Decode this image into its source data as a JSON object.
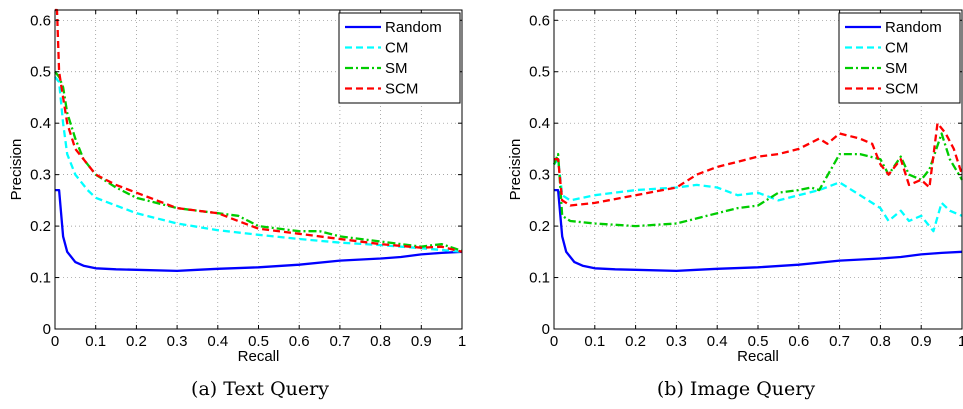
{
  "chart_data": [
    {
      "type": "line",
      "title": "",
      "caption": "(a) Text Query",
      "xlabel": "Recall",
      "ylabel": "Precision",
      "xlim": [
        0,
        1
      ],
      "ylim": [
        0,
        0.62
      ],
      "xticks": [
        "0",
        "0.1",
        "0.2",
        "0.3",
        "0.4",
        "0.5",
        "0.6",
        "0.7",
        "0.8",
        "0.9",
        "1"
      ],
      "yticks": [
        "0",
        "0.1",
        "0.2",
        "0.3",
        "0.4",
        "0.5",
        "0.6"
      ],
      "grid": true,
      "legend_position": "top-right",
      "series": [
        {
          "name": "Random",
          "color": "#0000ff",
          "dash": "solid",
          "x": [
            0,
            0.01,
            0.02,
            0.03,
            0.05,
            0.07,
            0.1,
            0.15,
            0.2,
            0.3,
            0.35,
            0.4,
            0.5,
            0.6,
            0.7,
            0.8,
            0.85,
            0.9,
            0.95,
            1.0
          ],
          "y": [
            0.27,
            0.27,
            0.18,
            0.15,
            0.13,
            0.123,
            0.118,
            0.116,
            0.115,
            0.113,
            0.115,
            0.117,
            0.12,
            0.125,
            0.133,
            0.137,
            0.14,
            0.145,
            0.148,
            0.15
          ]
        },
        {
          "name": "CM",
          "color": "#00ffff",
          "dash": "dashed",
          "x": [
            0,
            0.01,
            0.02,
            0.03,
            0.05,
            0.08,
            0.1,
            0.15,
            0.2,
            0.3,
            0.4,
            0.5,
            0.6,
            0.7,
            0.8,
            0.9,
            1.0
          ],
          "y": [
            0.49,
            0.48,
            0.4,
            0.34,
            0.3,
            0.27,
            0.255,
            0.24,
            0.225,
            0.205,
            0.192,
            0.183,
            0.175,
            0.168,
            0.163,
            0.157,
            0.15
          ]
        },
        {
          "name": "SM",
          "color": "#00cc00",
          "dash": "dashdot",
          "x": [
            0,
            0.01,
            0.02,
            0.03,
            0.05,
            0.07,
            0.1,
            0.15,
            0.2,
            0.3,
            0.35,
            0.4,
            0.45,
            0.5,
            0.6,
            0.65,
            0.7,
            0.8,
            0.9,
            0.95,
            1.0
          ],
          "y": [
            0.5,
            0.49,
            0.47,
            0.42,
            0.37,
            0.33,
            0.3,
            0.275,
            0.255,
            0.235,
            0.23,
            0.225,
            0.22,
            0.2,
            0.19,
            0.19,
            0.18,
            0.17,
            0.16,
            0.165,
            0.152
          ]
        },
        {
          "name": "SCM",
          "color": "#ff0000",
          "dash": "dashed",
          "x": [
            0,
            0.005,
            0.01,
            0.02,
            0.03,
            0.05,
            0.07,
            0.1,
            0.15,
            0.2,
            0.25,
            0.3,
            0.35,
            0.4,
            0.45,
            0.5,
            0.6,
            0.7,
            0.8,
            0.9,
            0.95,
            1.0
          ],
          "y": [
            0.62,
            0.62,
            0.5,
            0.45,
            0.4,
            0.35,
            0.33,
            0.3,
            0.28,
            0.265,
            0.25,
            0.235,
            0.23,
            0.225,
            0.21,
            0.195,
            0.185,
            0.175,
            0.165,
            0.158,
            0.16,
            0.15
          ]
        }
      ]
    },
    {
      "type": "line",
      "title": "",
      "caption": "(b) Image Query",
      "xlabel": "Recall",
      "ylabel": "Precision",
      "xlim": [
        0,
        1
      ],
      "ylim": [
        0,
        0.62
      ],
      "xticks": [
        "0",
        "0.1",
        "0.2",
        "0.3",
        "0.4",
        "0.5",
        "0.6",
        "0.7",
        "0.8",
        "0.9",
        "1"
      ],
      "yticks": [
        "0",
        "0.1",
        "0.2",
        "0.3",
        "0.4",
        "0.5",
        "0.6"
      ],
      "grid": true,
      "legend_position": "top-right",
      "series": [
        {
          "name": "Random",
          "color": "#0000ff",
          "dash": "solid",
          "x": [
            0,
            0.01,
            0.02,
            0.03,
            0.05,
            0.07,
            0.1,
            0.15,
            0.2,
            0.3,
            0.35,
            0.4,
            0.5,
            0.6,
            0.7,
            0.8,
            0.85,
            0.9,
            0.95,
            1.0
          ],
          "y": [
            0.27,
            0.27,
            0.18,
            0.15,
            0.13,
            0.123,
            0.118,
            0.116,
            0.115,
            0.113,
            0.115,
            0.117,
            0.12,
            0.125,
            0.133,
            0.137,
            0.14,
            0.145,
            0.148,
            0.15
          ]
        },
        {
          "name": "CM",
          "color": "#00ffff",
          "dash": "dashed",
          "x": [
            0,
            0.01,
            0.02,
            0.04,
            0.1,
            0.2,
            0.3,
            0.35,
            0.4,
            0.45,
            0.5,
            0.55,
            0.6,
            0.65,
            0.7,
            0.75,
            0.8,
            0.82,
            0.85,
            0.87,
            0.9,
            0.93,
            0.95,
            0.97,
            1.0
          ],
          "y": [
            0.32,
            0.33,
            0.26,
            0.25,
            0.26,
            0.27,
            0.275,
            0.28,
            0.275,
            0.26,
            0.265,
            0.25,
            0.26,
            0.27,
            0.285,
            0.26,
            0.235,
            0.21,
            0.23,
            0.21,
            0.22,
            0.19,
            0.245,
            0.23,
            0.22
          ]
        },
        {
          "name": "SM",
          "color": "#00cc00",
          "dash": "dashdot",
          "x": [
            0,
            0.01,
            0.02,
            0.04,
            0.1,
            0.2,
            0.3,
            0.35,
            0.4,
            0.45,
            0.5,
            0.55,
            0.6,
            0.63,
            0.65,
            0.7,
            0.75,
            0.8,
            0.82,
            0.85,
            0.87,
            0.9,
            0.92,
            0.95,
            0.97,
            1.0
          ],
          "y": [
            0.32,
            0.34,
            0.22,
            0.21,
            0.205,
            0.2,
            0.205,
            0.215,
            0.225,
            0.235,
            0.24,
            0.265,
            0.27,
            0.275,
            0.27,
            0.34,
            0.34,
            0.33,
            0.3,
            0.335,
            0.3,
            0.29,
            0.31,
            0.38,
            0.33,
            0.29
          ]
        },
        {
          "name": "SCM",
          "color": "#ff0000",
          "dash": "dashed",
          "x": [
            0,
            0.01,
            0.02,
            0.04,
            0.1,
            0.2,
            0.3,
            0.35,
            0.4,
            0.45,
            0.5,
            0.55,
            0.6,
            0.65,
            0.67,
            0.7,
            0.75,
            0.78,
            0.8,
            0.82,
            0.85,
            0.87,
            0.9,
            0.92,
            0.94,
            0.96,
            0.98,
            1.0
          ],
          "y": [
            0.33,
            0.33,
            0.25,
            0.24,
            0.245,
            0.26,
            0.275,
            0.3,
            0.315,
            0.325,
            0.335,
            0.34,
            0.35,
            0.37,
            0.36,
            0.38,
            0.37,
            0.36,
            0.32,
            0.3,
            0.33,
            0.28,
            0.29,
            0.275,
            0.4,
            0.38,
            0.35,
            0.3
          ]
        }
      ]
    }
  ]
}
